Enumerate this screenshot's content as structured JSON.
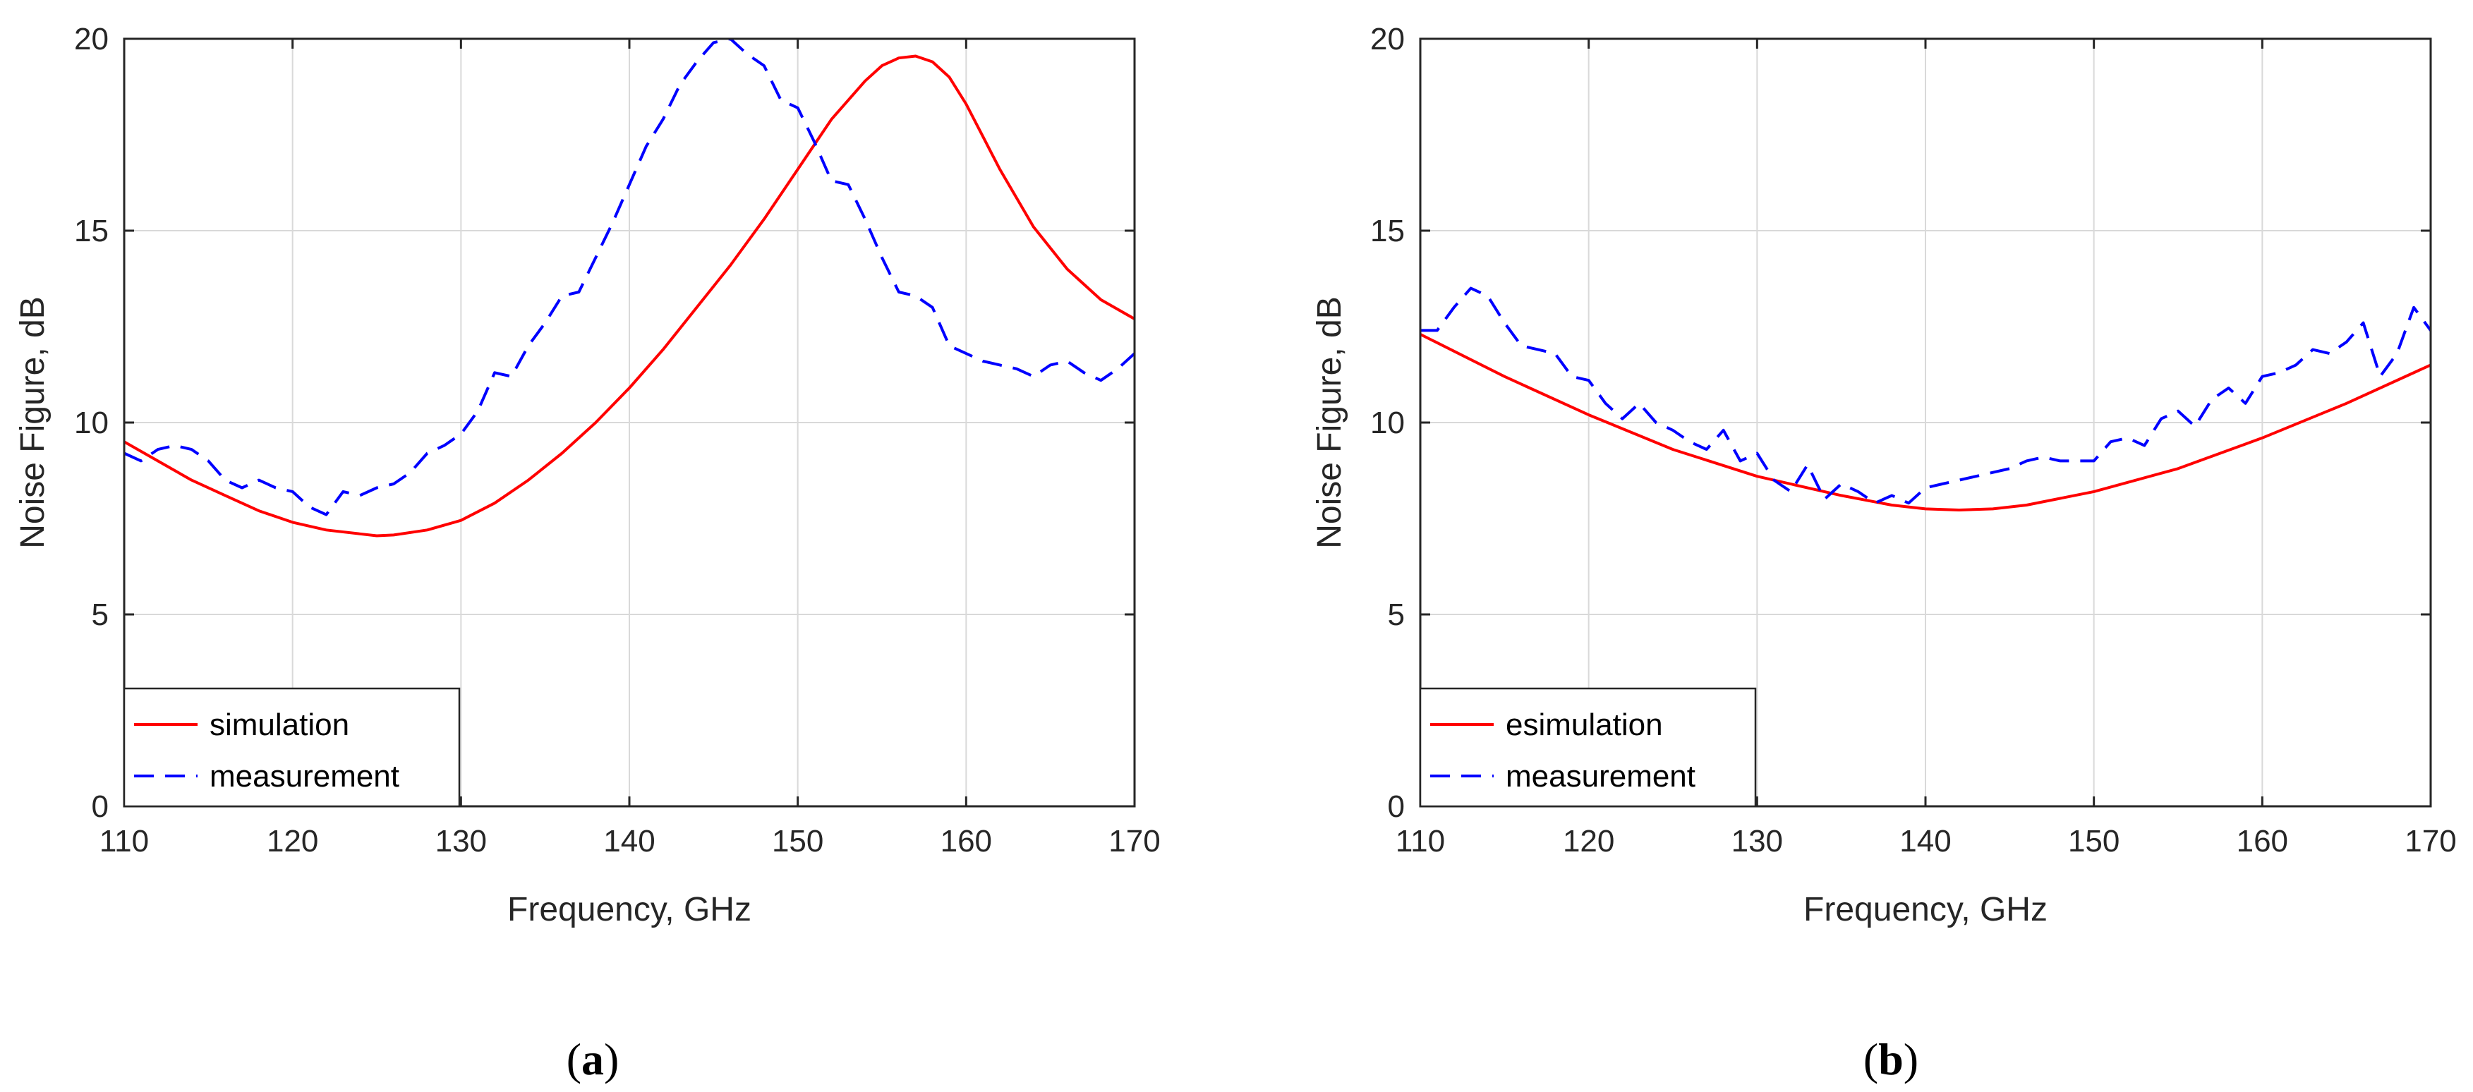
{
  "figure": {
    "background": "#ffffff",
    "grid_color": "#d9d9d9",
    "axis_color": "#262626",
    "simulation_color": "#ff0000",
    "measurement_color": "#0000ff"
  },
  "chart_data": [
    {
      "type": "line",
      "panel": "a",
      "caption": {
        "open": "(",
        "letter": "a",
        "close": ")"
      },
      "title": "",
      "xlabel": "Frequency, GHz",
      "ylabel": "Noise Figure, dB",
      "xlim": [
        110,
        170
      ],
      "ylim": [
        0,
        20
      ],
      "xticks": [
        110,
        120,
        130,
        140,
        150,
        160,
        170
      ],
      "yticks": [
        0,
        5,
        10,
        15,
        20
      ],
      "grid": true,
      "legend_position": "bottom-left",
      "series": [
        {
          "name": "simulation",
          "style": "solid",
          "color": "#ff0000",
          "x": [
            110,
            112,
            114,
            116,
            118,
            120,
            122,
            124,
            125,
            126,
            128,
            130,
            132,
            134,
            136,
            138,
            140,
            142,
            144,
            146,
            148,
            150,
            152,
            154,
            155,
            156,
            157,
            158,
            159,
            160,
            162,
            164,
            166,
            168,
            170
          ],
          "y": [
            9.5,
            9.0,
            8.5,
            8.1,
            7.7,
            7.4,
            7.2,
            7.1,
            7.05,
            7.07,
            7.2,
            7.45,
            7.9,
            8.5,
            9.2,
            10.0,
            10.9,
            11.9,
            13.0,
            14.1,
            15.3,
            16.6,
            17.9,
            18.9,
            19.3,
            19.5,
            19.55,
            19.4,
            19.0,
            18.3,
            16.6,
            15.1,
            14.0,
            13.2,
            12.7
          ]
        },
        {
          "name": "measurement",
          "style": "dashed",
          "color": "#0000ff",
          "x": [
            110,
            111,
            112,
            113,
            114,
            115,
            116,
            117,
            118,
            119,
            120,
            121,
            122,
            123,
            124,
            125,
            126,
            127,
            128,
            129,
            130,
            131,
            132,
            133,
            134,
            135,
            136,
            137,
            138,
            139,
            140,
            141,
            142,
            143,
            144,
            145,
            146,
            147,
            148,
            149,
            150,
            151,
            152,
            153,
            154,
            155,
            156,
            157,
            158,
            159,
            160,
            161,
            162,
            163,
            164,
            165,
            166,
            167,
            168,
            169,
            170
          ],
          "y": [
            9.2,
            9.0,
            9.3,
            9.4,
            9.3,
            9.0,
            8.5,
            8.3,
            8.5,
            8.3,
            8.2,
            7.8,
            7.6,
            8.2,
            8.1,
            8.3,
            8.4,
            8.7,
            9.2,
            9.4,
            9.7,
            10.3,
            11.3,
            11.2,
            12.0,
            12.6,
            13.3,
            13.4,
            14.3,
            15.2,
            16.2,
            17.2,
            17.9,
            18.8,
            19.4,
            19.9,
            20.0,
            19.6,
            19.3,
            18.4,
            18.2,
            17.3,
            16.3,
            16.2,
            15.3,
            14.3,
            13.4,
            13.3,
            13.0,
            12.0,
            11.8,
            11.6,
            11.5,
            11.4,
            11.2,
            11.5,
            11.6,
            11.3,
            11.1,
            11.4,
            11.8
          ]
        }
      ]
    },
    {
      "type": "line",
      "panel": "b",
      "caption": {
        "open": "(",
        "letter": "b",
        "close": ")"
      },
      "title": "",
      "xlabel": "Frequency, GHz",
      "ylabel": "Noise Figure, dB",
      "xlim": [
        110,
        170
      ],
      "ylim": [
        0,
        20
      ],
      "xticks": [
        110,
        120,
        130,
        140,
        150,
        160,
        170
      ],
      "yticks": [
        0,
        5,
        10,
        15,
        20
      ],
      "grid": true,
      "legend_position": "bottom-left",
      "series": [
        {
          "name": "esimulation",
          "style": "solid",
          "color": "#ff0000",
          "x": [
            110,
            115,
            120,
            125,
            130,
            135,
            138,
            140,
            142,
            144,
            146,
            150,
            155,
            160,
            165,
            170
          ],
          "y": [
            12.3,
            11.2,
            10.2,
            9.3,
            8.6,
            8.1,
            7.85,
            7.75,
            7.72,
            7.75,
            7.85,
            8.2,
            8.8,
            9.6,
            10.5,
            11.5
          ]
        },
        {
          "name": "measurement",
          "style": "dashed",
          "color": "#0000ff",
          "x": [
            110,
            111,
            112,
            113,
            114,
            115,
            116,
            117,
            118,
            119,
            120,
            121,
            122,
            123,
            124,
            125,
            126,
            127,
            128,
            129,
            130,
            131,
            132,
            133,
            134,
            135,
            136,
            137,
            138,
            139,
            140,
            141,
            142,
            143,
            144,
            145,
            146,
            147,
            148,
            149,
            150,
            151,
            152,
            153,
            154,
            155,
            156,
            157,
            158,
            159,
            160,
            161,
            162,
            163,
            164,
            165,
            166,
            167,
            168,
            169,
            170
          ],
          "y": [
            12.4,
            12.4,
            13.0,
            13.5,
            13.3,
            12.6,
            12.0,
            11.9,
            11.8,
            11.2,
            11.1,
            10.5,
            10.1,
            10.5,
            10.0,
            9.8,
            9.5,
            9.3,
            9.8,
            9.0,
            9.2,
            8.5,
            8.2,
            8.9,
            8.0,
            8.4,
            8.2,
            7.9,
            8.1,
            7.9,
            8.3,
            8.4,
            8.5,
            8.6,
            8.7,
            8.8,
            9.0,
            9.1,
            9.0,
            9.0,
            9.0,
            9.5,
            9.6,
            9.4,
            10.1,
            10.3,
            9.9,
            10.6,
            10.9,
            10.5,
            11.2,
            11.3,
            11.5,
            11.9,
            11.8,
            12.1,
            12.6,
            11.2,
            11.8,
            13.0,
            12.4
          ]
        }
      ]
    }
  ]
}
